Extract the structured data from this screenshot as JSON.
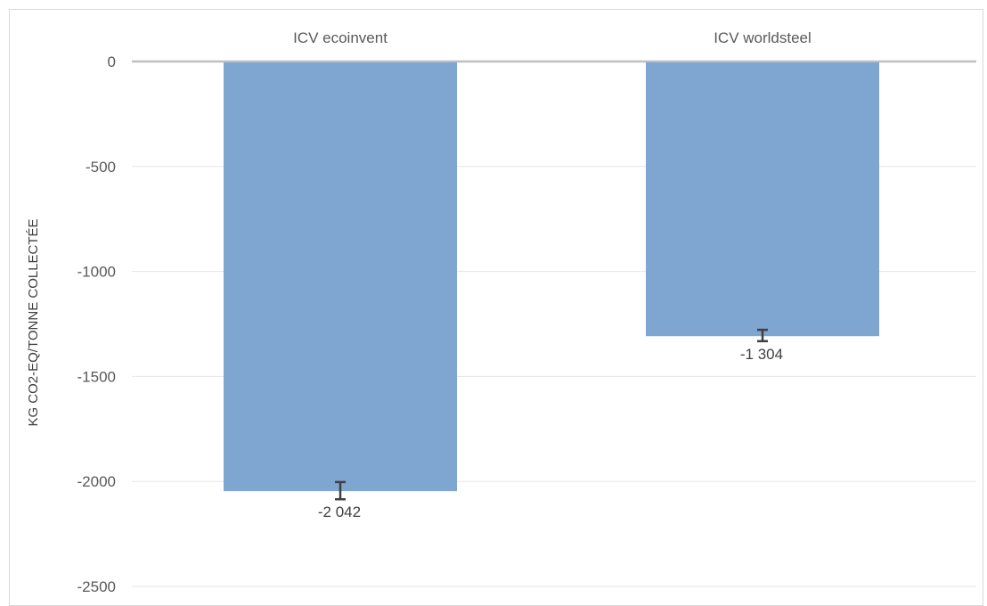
{
  "chart_data": {
    "type": "bar",
    "title": "",
    "xlabel": "",
    "ylabel": "KG CO2-EQ/TONNE COLLECTÉE",
    "categories": [
      "ICV ecoinvent",
      "ICV worldsteel"
    ],
    "values": [
      -2042,
      -1304
    ],
    "data_labels": [
      "-2 042",
      "-1 304"
    ],
    "error_bars": [
      {
        "low": -2085,
        "high": -2003
      },
      {
        "low": -1332,
        "high": -1278
      }
    ],
    "ylim": [
      -2500,
      0
    ],
    "yticks": [
      0,
      -500,
      -1000,
      -1500,
      -2000,
      -2500
    ],
    "ytick_labels": [
      "0",
      "-500",
      "-1000",
      "-1500",
      "-2000",
      "-2500"
    ],
    "grid": true,
    "legend": "none",
    "colors": {
      "bar": "#7fa6d1",
      "error_bar": "#404040",
      "grid": "#e6e6e6",
      "zero_line": "#bfbfbf",
      "frame": "#d9d9d9"
    }
  }
}
